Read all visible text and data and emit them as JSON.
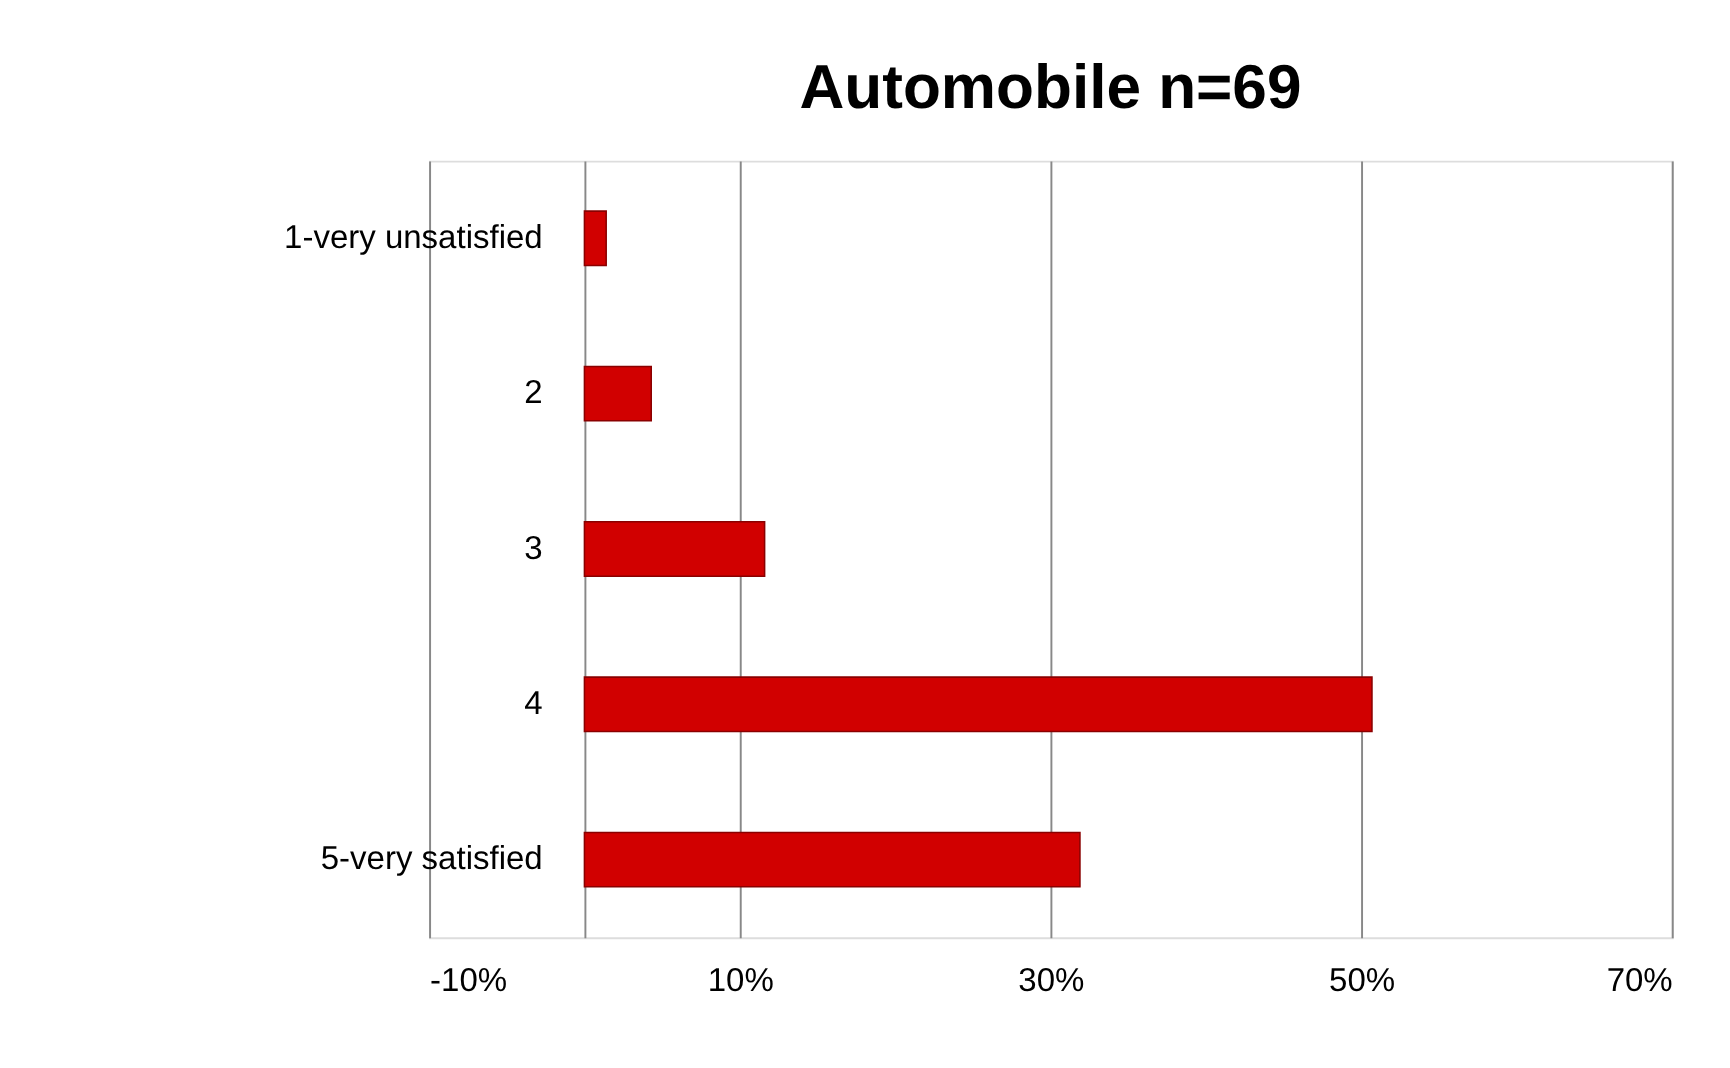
{
  "chart_data": {
    "type": "bar",
    "orientation": "horizontal",
    "title": "Automobile n=69",
    "categories": [
      "1-very unsatisfied",
      "2",
      "3",
      "4",
      "5-very satisfied"
    ],
    "values": [
      1.4,
      4.3,
      11.6,
      50.7,
      31.9
    ],
    "color": "#d10000",
    "xlim": [
      -10,
      70
    ],
    "xticks": [
      {
        "value": -10,
        "label": "-10%"
      },
      {
        "value": 10,
        "label": "10%"
      },
      {
        "value": 30,
        "label": "30%"
      },
      {
        "value": 50,
        "label": "50%"
      },
      {
        "value": 70,
        "label": "70%"
      }
    ],
    "grid": "x"
  }
}
